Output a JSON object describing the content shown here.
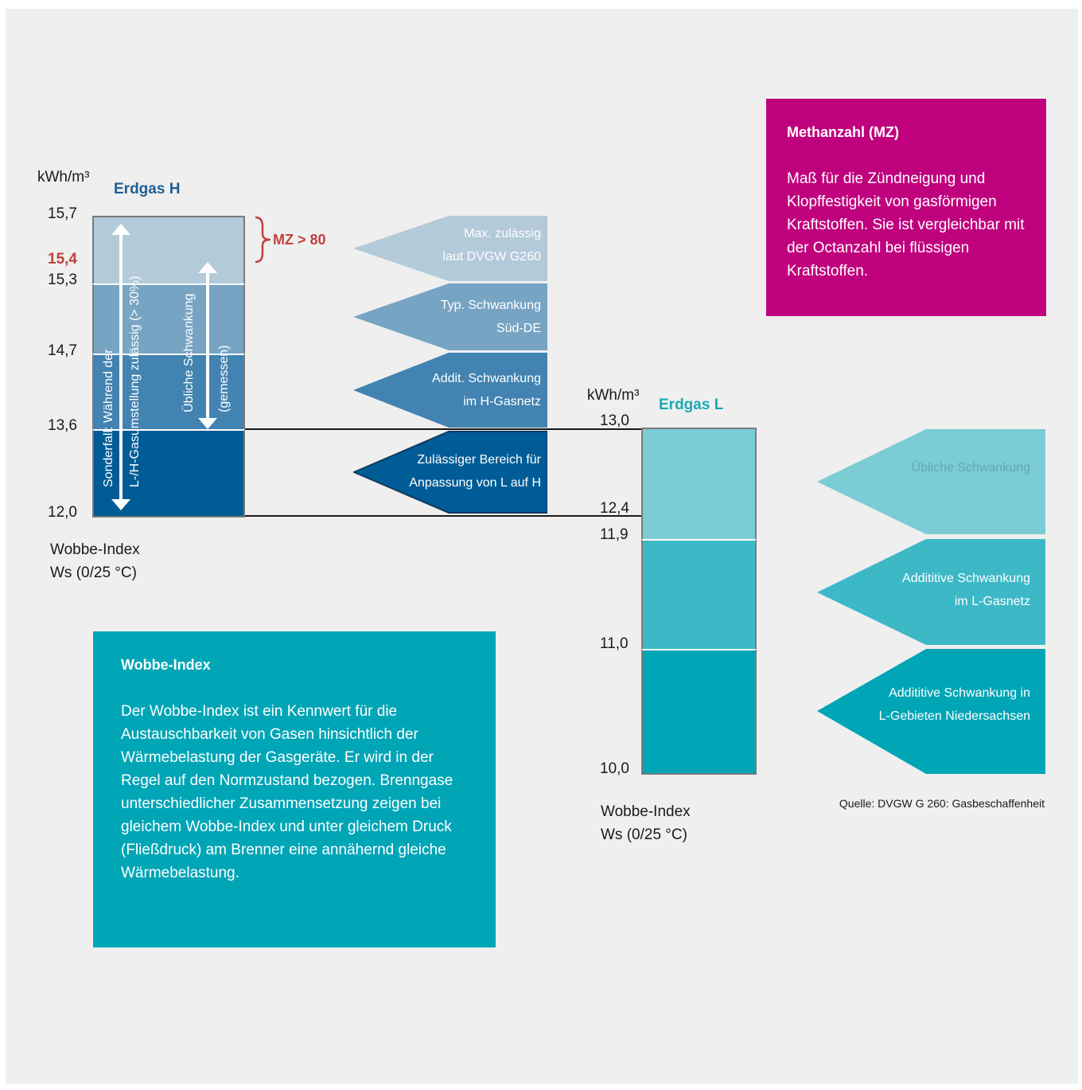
{
  "left_chart": {
    "unit": "kWh/m³",
    "title": "Erdgas H",
    "ticks": [
      "15,7",
      "15,4",
      "15,3",
      "14,7",
      "13,6",
      "12,0"
    ],
    "mz_label": "MZ > 80",
    "arrow_long_label_1": "Sonderfall: Während der",
    "arrow_long_label_2": "L-/H-Gasumstellung zulässig (> 30%)",
    "arrow_short_label_1": "Übliche Schwankung",
    "arrow_short_label_2": "(gemessen)",
    "xlabel_1": "Wobbe-Index",
    "xlabel_2": "Ws (0/25 °C)",
    "pentagons": [
      {
        "line1": "Max. zulässig",
        "line2": "laut DVGW G260"
      },
      {
        "line1": "Typ. Schwankung",
        "line2": "Süd-DE"
      },
      {
        "line1": "Addit. Schwankung",
        "line2": "im H-Gasnetz"
      },
      {
        "line1": "Zulässiger Bereich für",
        "line2": "Anpassung von L auf H"
      }
    ]
  },
  "right_chart": {
    "unit": "kWh/m³",
    "title": "Erdgas L",
    "ticks": [
      "13,0",
      "12,4",
      "11,9",
      "11,0",
      "10,0"
    ],
    "xlabel_1": "Wobbe-Index",
    "xlabel_2": "Ws (0/25 °C)",
    "pentagons": [
      {
        "line1": "",
        "line2": "Übliche Schwankung"
      },
      {
        "line1": "Addititive Schwankung",
        "line2": "im L-Gasnetz"
      },
      {
        "line1": "Addititive Schwankung in",
        "line2": "L-Gebieten Niedersachsen"
      }
    ]
  },
  "wobbe_box": {
    "title": "Wobbe-Index",
    "body": "Der Wobbe-Index ist ein Kennwert für die Austauschbarkeit von Gasen hinsichtlich der Wärmebelastung der Gasgeräte. Er wird in der Regel auf den Normzustand bezogen. Brenngase unterschiedlicher Zusammensetzung zeigen bei gleichem Wobbe-Index und unter gleichem Druck (Fließdruck) am Brenner eine annähernd gleiche Wärmebelastung."
  },
  "mz_box": {
    "title": "Methanzahl (MZ)",
    "body": "Maß für die Zündneigung und Klopffestigkeit von gasförmigen Kraftstoffen. Sie ist vergleichbar mit der Octanzahl bei flüssigen Kraftstoffen."
  },
  "source": "Quelle: DVGW G 260: Gasbeschaffenheit",
  "colors": {
    "h_band1": "#b3cad9",
    "h_band2": "#77a4c3",
    "h_band3": "#4283b1",
    "h_band4": "#005c96",
    "l_band1": "#7bccd5",
    "l_band2": "#3db8c7",
    "l_band3": "#00a5b6",
    "mz_box": "#c0017e",
    "wobbe_box": "#00a5b6",
    "accent_red": "#c0413f"
  }
}
